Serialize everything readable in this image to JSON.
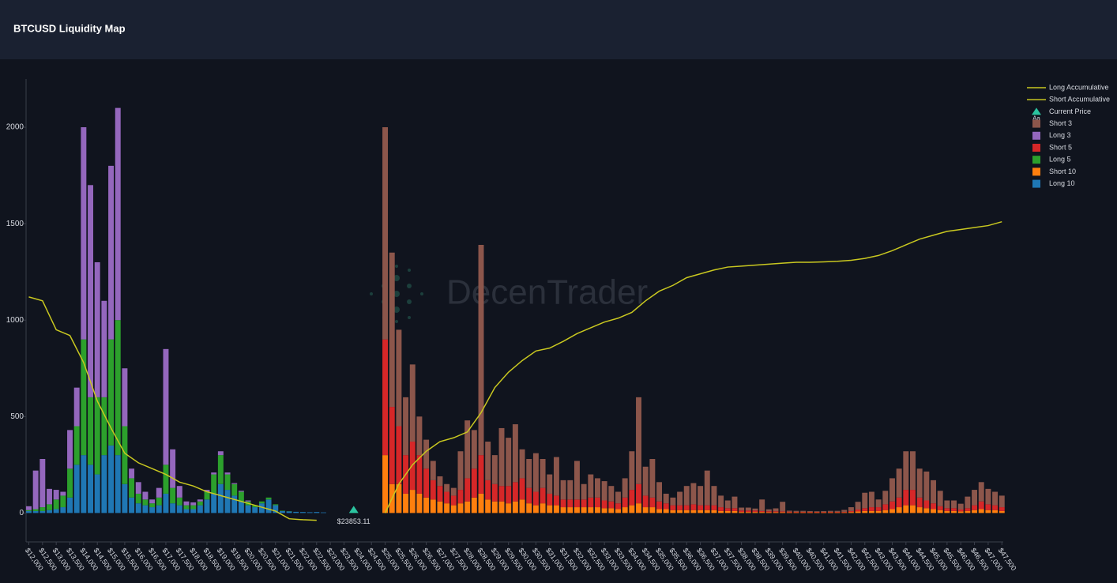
{
  "header": {
    "title": "BTCUSD Liquidity Map"
  },
  "chart_data": {
    "type": "bar",
    "stacked": true,
    "watermark": "DecenTrader",
    "grid": false,
    "legend": "top-right",
    "xlim": [
      11900,
      47550
    ],
    "ylim": [
      -150,
      2250
    ],
    "yticks": [
      0,
      500,
      1000,
      1500,
      2000
    ],
    "xticks": [
      {
        "value": 12000,
        "label": "$12,000"
      },
      {
        "value": 12500,
        "label": "$12,500"
      },
      {
        "value": 13000,
        "label": "$13,000"
      },
      {
        "value": 13500,
        "label": "$13,500"
      },
      {
        "value": 14000,
        "label": "$14,000"
      },
      {
        "value": 14500,
        "label": "$14,500"
      },
      {
        "value": 15000,
        "label": "$15,000"
      },
      {
        "value": 15500,
        "label": "$15,500"
      },
      {
        "value": 16000,
        "label": "$16,000"
      },
      {
        "value": 16500,
        "label": "$16,500"
      },
      {
        "value": 17000,
        "label": "$17,000"
      },
      {
        "value": 17500,
        "label": "$17,500"
      },
      {
        "value": 18000,
        "label": "$18,000"
      },
      {
        "value": 18500,
        "label": "$18,500"
      },
      {
        "value": 19000,
        "label": "$19,000"
      },
      {
        "value": 19500,
        "label": "$19,500"
      },
      {
        "value": 20000,
        "label": "$20,000"
      },
      {
        "value": 20500,
        "label": "$20,500"
      },
      {
        "value": 21000,
        "label": "$21,000"
      },
      {
        "value": 21500,
        "label": "$21,500"
      },
      {
        "value": 22000,
        "label": "$22,000"
      },
      {
        "value": 22500,
        "label": "$22,500"
      },
      {
        "value": 23000,
        "label": "$23,000"
      },
      {
        "value": 23500,
        "label": "$23,500"
      },
      {
        "value": 24000,
        "label": "$24,000"
      },
      {
        "value": 24500,
        "label": "$24,500"
      },
      {
        "value": 25000,
        "label": "$25,000"
      },
      {
        "value": 25500,
        "label": "$25,500"
      },
      {
        "value": 26000,
        "label": "$26,000"
      },
      {
        "value": 26500,
        "label": "$26,500"
      },
      {
        "value": 27000,
        "label": "$27,000"
      },
      {
        "value": 27500,
        "label": "$27,500"
      },
      {
        "value": 28000,
        "label": "$28,000"
      },
      {
        "value": 28500,
        "label": "$28,500"
      },
      {
        "value": 29000,
        "label": "$29,000"
      },
      {
        "value": 29500,
        "label": "$29,500"
      },
      {
        "value": 30000,
        "label": "$30,000"
      },
      {
        "value": 30500,
        "label": "$30,500"
      },
      {
        "value": 31000,
        "label": "$31,000"
      },
      {
        "value": 31500,
        "label": "$31,500"
      },
      {
        "value": 32000,
        "label": "$32,000"
      },
      {
        "value": 32500,
        "label": "$32,500"
      },
      {
        "value": 33000,
        "label": "$33,000"
      },
      {
        "value": 33500,
        "label": "$33,500"
      },
      {
        "value": 34000,
        "label": "$34,000"
      },
      {
        "value": 34500,
        "label": "$34,500"
      },
      {
        "value": 35000,
        "label": "$35,000"
      },
      {
        "value": 35500,
        "label": "$35,500"
      },
      {
        "value": 36000,
        "label": "$36,000"
      },
      {
        "value": 36500,
        "label": "$36,500"
      },
      {
        "value": 37000,
        "label": "$37,000"
      },
      {
        "value": 37500,
        "label": "$37,500"
      },
      {
        "value": 38000,
        "label": "$38,000"
      },
      {
        "value": 38500,
        "label": "$38,500"
      },
      {
        "value": 39000,
        "label": "$39,000"
      },
      {
        "value": 39500,
        "label": "$39,500"
      },
      {
        "value": 40000,
        "label": "$40,000"
      },
      {
        "value": 40500,
        "label": "$40,500"
      },
      {
        "value": 41000,
        "label": "$41,000"
      },
      {
        "value": 41500,
        "label": "$41,500"
      },
      {
        "value": 42000,
        "label": "$42,000"
      },
      {
        "value": 42500,
        "label": "$42,500"
      },
      {
        "value": 43000,
        "label": "$43,000"
      },
      {
        "value": 43500,
        "label": "$43,500"
      },
      {
        "value": 44000,
        "label": "$44,000"
      },
      {
        "value": 44500,
        "label": "$44,500"
      },
      {
        "value": 45000,
        "label": "$45,000"
      },
      {
        "value": 45500,
        "label": "$45,500"
      },
      {
        "value": 46000,
        "label": "$46,000"
      },
      {
        "value": 46500,
        "label": "$46,500"
      },
      {
        "value": 47000,
        "label": "$47,000"
      },
      {
        "value": 47500,
        "label": "$47,500"
      }
    ],
    "lines": [
      {
        "name": "Long Accumulative",
        "color": "#c9c820",
        "x": [
          12000,
          12500,
          13000,
          13500,
          14000,
          14500,
          15000,
          15500,
          16000,
          16500,
          17000,
          17500,
          18000,
          18500,
          19000,
          19500,
          20000,
          20500,
          21000,
          21500,
          22000,
          22500
        ],
        "values": [
          1120,
          1100,
          950,
          920,
          780,
          580,
          440,
          310,
          260,
          230,
          200,
          160,
          140,
          110,
          90,
          70,
          50,
          30,
          10,
          -30,
          -35,
          -38
        ]
      },
      {
        "name": "Short Accumulative",
        "color": "#c9c820",
        "x": [
          25000,
          25500,
          26000,
          26500,
          27000,
          27500,
          28000,
          28500,
          29000,
          29500,
          30000,
          30500,
          31000,
          31500,
          32000,
          32500,
          33000,
          33500,
          34000,
          34500,
          35000,
          35500,
          36000,
          36500,
          37000,
          37500,
          38000,
          38500,
          39000,
          39500,
          40000,
          40500,
          41000,
          41500,
          42000,
          42500,
          43000,
          43500,
          44000,
          44500,
          45000,
          45500,
          46000,
          46500,
          47000,
          47500
        ],
        "values": [
          0,
          150,
          250,
          320,
          370,
          390,
          420,
          520,
          650,
          730,
          790,
          840,
          855,
          890,
          930,
          960,
          990,
          1010,
          1040,
          1100,
          1150,
          1180,
          1220,
          1240,
          1260,
          1275,
          1280,
          1285,
          1290,
          1295,
          1300,
          1300,
          1302,
          1305,
          1310,
          1320,
          1335,
          1360,
          1390,
          1420,
          1440,
          1460,
          1470,
          1480,
          1490,
          1510
        ]
      }
    ],
    "current_price": {
      "name": "Current Price",
      "symbol_text": "Aa",
      "color": "#2bc4a0",
      "value": 23853.11,
      "label": "$23853.11"
    },
    "bar_groups": [
      {
        "x": [
          12000,
          12250,
          12500,
          12750,
          13000,
          13250,
          13500,
          13750,
          14000,
          14250,
          14500,
          14750,
          15000,
          15250,
          15500,
          15750,
          16000,
          16250,
          16500,
          16750,
          17000,
          17250,
          17500,
          17750,
          18000,
          18250,
          18500,
          18750,
          19000,
          19250,
          19500,
          19750,
          20000,
          20250,
          20500,
          20750,
          21000,
          21250,
          21500,
          21750,
          22000,
          22250,
          22500,
          22750
        ],
        "series": [
          {
            "name": "Long 3",
            "color": "#9467bd",
            "values": [
              20,
              200,
              250,
              80,
              50,
              20,
              200,
              200,
              1100,
              1100,
              700,
              500,
              900,
              1100,
              300,
              50,
              60,
              40,
              20,
              50,
              600,
              200,
              60,
              20,
              15,
              10,
              10,
              10,
              20,
              10,
              5,
              5,
              5,
              0,
              0,
              0,
              0,
              0,
              0,
              0,
              0,
              0,
              0,
              0
            ]
          },
          {
            "name": "Long 5",
            "color": "#2ca02c",
            "values": [
              5,
              10,
              20,
              30,
              50,
              60,
              150,
              200,
              600,
              350,
              400,
              300,
              550,
              700,
              300,
              100,
              50,
              30,
              20,
              40,
              150,
              80,
              40,
              20,
              20,
              20,
              40,
              100,
              150,
              80,
              60,
              50,
              20,
              10,
              10,
              10,
              5,
              2,
              1,
              0,
              0,
              0,
              0,
              0
            ]
          },
          {
            "name": "Long 10",
            "color": "#1f77b4",
            "values": [
              10,
              10,
              10,
              15,
              20,
              30,
              80,
              250,
              300,
              250,
              200,
              300,
              350,
              300,
              150,
              80,
              50,
              40,
              30,
              40,
              100,
              50,
              40,
              20,
              20,
              40,
              70,
              100,
              150,
              120,
              90,
              60,
              40,
              30,
              50,
              70,
              40,
              10,
              8,
              6,
              5,
              4,
              5,
              3
            ]
          }
        ]
      },
      {
        "x": [
          25000,
          25250,
          25500,
          25750,
          26000,
          26250,
          26500,
          26750,
          27000,
          27250,
          27500,
          27750,
          28000,
          28250,
          28500,
          28750,
          29000,
          29250,
          29500,
          29750,
          30000,
          30250,
          30500,
          30750,
          31000,
          31250,
          31500,
          31750,
          32000,
          32250,
          32500,
          32750,
          33000,
          33250,
          33500,
          33750,
          34000,
          34250,
          34500,
          34750,
          35000,
          35250,
          35500,
          35750,
          36000,
          36250,
          36500,
          36750,
          37000,
          37250,
          37500,
          37750,
          38000,
          38250,
          38500,
          38750,
          39000,
          39250,
          39500,
          39750,
          40000,
          40250,
          40500,
          40750,
          41000,
          41250,
          41500,
          41750,
          42000,
          42250,
          42500,
          42750,
          43000,
          43250,
          43500,
          43750,
          44000,
          44250,
          44500,
          44750,
          45000,
          45250,
          45500,
          45750,
          46000,
          46250,
          46500,
          46750,
          47000,
          47250,
          47500
        ],
        "series": [
          {
            "name": "Short 3",
            "color": "#8c564b",
            "values": [
              1100,
              800,
              500,
              300,
              400,
              200,
              150,
              100,
              50,
              40,
              40,
              200,
              300,
              200,
              1090,
              200,
              150,
              300,
              250,
              300,
              150,
              150,
              200,
              150,
              100,
              200,
              100,
              100,
              200,
              80,
              120,
              100,
              100,
              80,
              60,
              100,
              200,
              450,
              150,
              200,
              100,
              50,
              40,
              70,
              100,
              110,
              100,
              180,
              100,
              60,
              40,
              60,
              15,
              15,
              10,
              60,
              10,
              15,
              50,
              5,
              5,
              5,
              4,
              3,
              4,
              5,
              5,
              10,
              20,
              40,
              80,
              80,
              40,
              70,
              120,
              150,
              200,
              200,
              150,
              150,
              120,
              80,
              40,
              40,
              30,
              60,
              80,
              100,
              80,
              70,
              60
            ]
          },
          {
            "name": "Short 5",
            "color": "#d62728",
            "values": [
              600,
              400,
              300,
              200,
              250,
              200,
              150,
              100,
              80,
              60,
              50,
              70,
              120,
              150,
              200,
              100,
              90,
              80,
              90,
              100,
              110,
              80,
              70,
              80,
              60,
              50,
              40,
              40,
              40,
              40,
              50,
              50,
              40,
              35,
              30,
              50,
              80,
              100,
              60,
              50,
              40,
              30,
              25,
              25,
              25,
              30,
              25,
              25,
              25,
              20,
              15,
              15,
              8,
              8,
              8,
              5,
              5,
              5,
              4,
              4,
              3,
              3,
              3,
              3,
              3,
              3,
              3,
              3,
              5,
              10,
              15,
              20,
              20,
              30,
              40,
              50,
              80,
              80,
              50,
              40,
              30,
              20,
              15,
              15,
              10,
              15,
              25,
              40,
              30,
              25,
              20
            ]
          },
          {
            "name": "Short 10",
            "color": "#ff7f0e",
            "values": [
              300,
              150,
              150,
              100,
              120,
              100,
              80,
              70,
              60,
              50,
              40,
              50,
              60,
              80,
              100,
              70,
              60,
              60,
              50,
              60,
              70,
              50,
              40,
              50,
              40,
              40,
              30,
              30,
              30,
              30,
              30,
              30,
              25,
              25,
              20,
              30,
              40,
              50,
              30,
              30,
              20,
              20,
              15,
              15,
              15,
              15,
              15,
              15,
              15,
              10,
              10,
              10,
              5,
              5,
              5,
              5,
              4,
              4,
              4,
              3,
              3,
              3,
              3,
              3,
              3,
              3,
              3,
              3,
              5,
              8,
              10,
              10,
              10,
              15,
              20,
              30,
              40,
              40,
              30,
              25,
              20,
              15,
              10,
              10,
              8,
              10,
              15,
              20,
              15,
              15,
              10
            ]
          }
        ]
      }
    ]
  }
}
